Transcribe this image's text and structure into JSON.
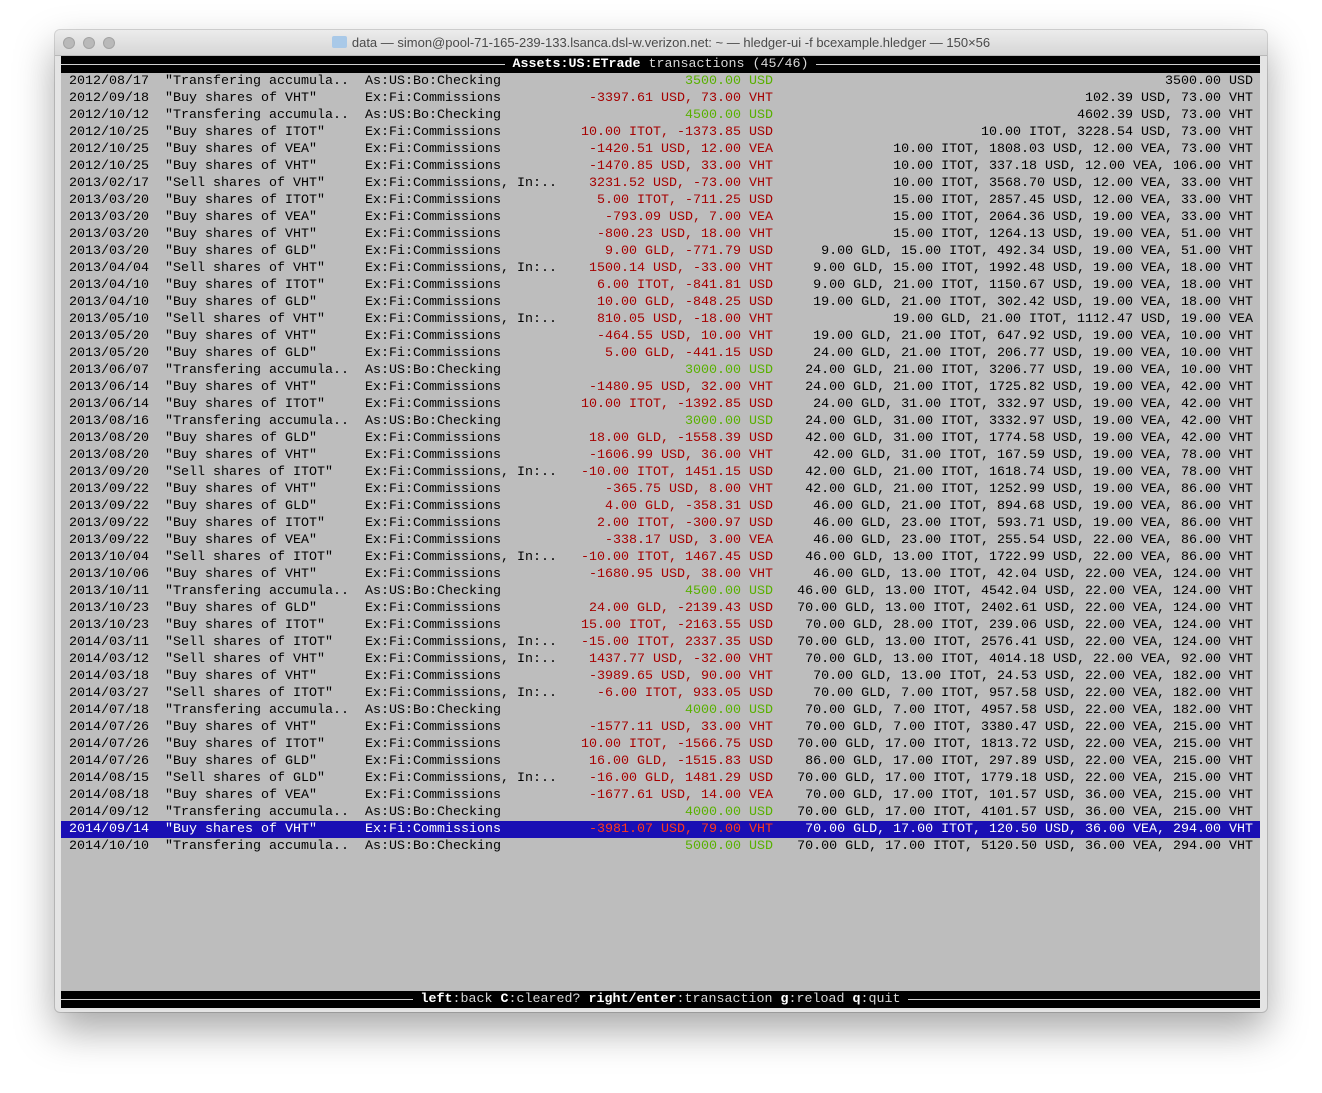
{
  "window": {
    "title": "data — simon@pool-71-165-239-133.lsanca.dsl-w.verizon.net: ~ — hledger-ui -f bcexample.hledger — 150×56",
    "title_icon": "folder-icon"
  },
  "header": {
    "account": "Assets:US:ETrade",
    "label": "transactions (45/46)"
  },
  "colors": {
    "negative": "#a50000",
    "positive": "#58b000",
    "selected_bg": "#1a0fb4",
    "background": "#bdbdbd"
  },
  "selected_index": 44,
  "rows": [
    {
      "date": "2012/08/17",
      "desc": "\"Transfering accumula..",
      "account": "As:US:Bo:Checking",
      "amount": "3500.00 USD",
      "positive": true,
      "balance": "3500.00 USD"
    },
    {
      "date": "2012/09/18",
      "desc": "\"Buy shares of VHT\"",
      "account": "Ex:Fi:Commissions",
      "amount": "-3397.61 USD, 73.00 VHT",
      "positive": false,
      "balance": "102.39 USD, 73.00 VHT"
    },
    {
      "date": "2012/10/12",
      "desc": "\"Transfering accumula..",
      "account": "As:US:Bo:Checking",
      "amount": "4500.00 USD",
      "positive": true,
      "balance": "4602.39 USD, 73.00 VHT"
    },
    {
      "date": "2012/10/25",
      "desc": "\"Buy shares of ITOT\"",
      "account": "Ex:Fi:Commissions",
      "amount": "10.00 ITOT, -1373.85 USD",
      "positive": false,
      "balance": "10.00 ITOT, 3228.54 USD, 73.00 VHT"
    },
    {
      "date": "2012/10/25",
      "desc": "\"Buy shares of VEA\"",
      "account": "Ex:Fi:Commissions",
      "amount": "-1420.51 USD, 12.00 VEA",
      "positive": false,
      "balance": "10.00 ITOT, 1808.03 USD, 12.00 VEA, 73.00 VHT"
    },
    {
      "date": "2012/10/25",
      "desc": "\"Buy shares of VHT\"",
      "account": "Ex:Fi:Commissions",
      "amount": "-1470.85 USD, 33.00 VHT",
      "positive": false,
      "balance": "10.00 ITOT, 337.18 USD, 12.00 VEA, 106.00 VHT"
    },
    {
      "date": "2013/02/17",
      "desc": "\"Sell shares of VHT\"",
      "account": "Ex:Fi:Commissions, In:..",
      "amount": "3231.52 USD, -73.00 VHT",
      "positive": false,
      "balance": "10.00 ITOT, 3568.70 USD, 12.00 VEA, 33.00 VHT"
    },
    {
      "date": "2013/03/20",
      "desc": "\"Buy shares of ITOT\"",
      "account": "Ex:Fi:Commissions",
      "amount": "5.00 ITOT, -711.25 USD",
      "positive": false,
      "balance": "15.00 ITOT, 2857.45 USD, 12.00 VEA, 33.00 VHT"
    },
    {
      "date": "2013/03/20",
      "desc": "\"Buy shares of VEA\"",
      "account": "Ex:Fi:Commissions",
      "amount": "-793.09 USD, 7.00 VEA",
      "positive": false,
      "balance": "15.00 ITOT, 2064.36 USD, 19.00 VEA, 33.00 VHT"
    },
    {
      "date": "2013/03/20",
      "desc": "\"Buy shares of VHT\"",
      "account": "Ex:Fi:Commissions",
      "amount": "-800.23 USD, 18.00 VHT",
      "positive": false,
      "balance": "15.00 ITOT, 1264.13 USD, 19.00 VEA, 51.00 VHT"
    },
    {
      "date": "2013/03/20",
      "desc": "\"Buy shares of GLD\"",
      "account": "Ex:Fi:Commissions",
      "amount": "9.00 GLD, -771.79 USD",
      "positive": false,
      "balance": "9.00 GLD, 15.00 ITOT, 492.34 USD, 19.00 VEA, 51.00 VHT"
    },
    {
      "date": "2013/04/04",
      "desc": "\"Sell shares of VHT\"",
      "account": "Ex:Fi:Commissions, In:..",
      "amount": "1500.14 USD, -33.00 VHT",
      "positive": false,
      "balance": "9.00 GLD, 15.00 ITOT, 1992.48 USD, 19.00 VEA, 18.00 VHT"
    },
    {
      "date": "2013/04/10",
      "desc": "\"Buy shares of ITOT\"",
      "account": "Ex:Fi:Commissions",
      "amount": "6.00 ITOT, -841.81 USD",
      "positive": false,
      "balance": "9.00 GLD, 21.00 ITOT, 1150.67 USD, 19.00 VEA, 18.00 VHT"
    },
    {
      "date": "2013/04/10",
      "desc": "\"Buy shares of GLD\"",
      "account": "Ex:Fi:Commissions",
      "amount": "10.00 GLD, -848.25 USD",
      "positive": false,
      "balance": "19.00 GLD, 21.00 ITOT, 302.42 USD, 19.00 VEA, 18.00 VHT"
    },
    {
      "date": "2013/05/10",
      "desc": "\"Sell shares of VHT\"",
      "account": "Ex:Fi:Commissions, In:..",
      "amount": "810.05 USD, -18.00 VHT",
      "positive": false,
      "balance": "19.00 GLD, 21.00 ITOT, 1112.47 USD, 19.00 VEA"
    },
    {
      "date": "2013/05/20",
      "desc": "\"Buy shares of VHT\"",
      "account": "Ex:Fi:Commissions",
      "amount": "-464.55 USD, 10.00 VHT",
      "positive": false,
      "balance": "19.00 GLD, 21.00 ITOT, 647.92 USD, 19.00 VEA, 10.00 VHT"
    },
    {
      "date": "2013/05/20",
      "desc": "\"Buy shares of GLD\"",
      "account": "Ex:Fi:Commissions",
      "amount": "5.00 GLD, -441.15 USD",
      "positive": false,
      "balance": "24.00 GLD, 21.00 ITOT, 206.77 USD, 19.00 VEA, 10.00 VHT"
    },
    {
      "date": "2013/06/07",
      "desc": "\"Transfering accumula..",
      "account": "As:US:Bo:Checking",
      "amount": "3000.00 USD",
      "positive": true,
      "balance": "24.00 GLD, 21.00 ITOT, 3206.77 USD, 19.00 VEA, 10.00 VHT"
    },
    {
      "date": "2013/06/14",
      "desc": "\"Buy shares of VHT\"",
      "account": "Ex:Fi:Commissions",
      "amount": "-1480.95 USD, 32.00 VHT",
      "positive": false,
      "balance": "24.00 GLD, 21.00 ITOT, 1725.82 USD, 19.00 VEA, 42.00 VHT"
    },
    {
      "date": "2013/06/14",
      "desc": "\"Buy shares of ITOT\"",
      "account": "Ex:Fi:Commissions",
      "amount": "10.00 ITOT, -1392.85 USD",
      "positive": false,
      "balance": "24.00 GLD, 31.00 ITOT, 332.97 USD, 19.00 VEA, 42.00 VHT"
    },
    {
      "date": "2013/08/16",
      "desc": "\"Transfering accumula..",
      "account": "As:US:Bo:Checking",
      "amount": "3000.00 USD",
      "positive": true,
      "balance": "24.00 GLD, 31.00 ITOT, 3332.97 USD, 19.00 VEA, 42.00 VHT"
    },
    {
      "date": "2013/08/20",
      "desc": "\"Buy shares of GLD\"",
      "account": "Ex:Fi:Commissions",
      "amount": "18.00 GLD, -1558.39 USD",
      "positive": false,
      "balance": "42.00 GLD, 31.00 ITOT, 1774.58 USD, 19.00 VEA, 42.00 VHT"
    },
    {
      "date": "2013/08/20",
      "desc": "\"Buy shares of VHT\"",
      "account": "Ex:Fi:Commissions",
      "amount": "-1606.99 USD, 36.00 VHT",
      "positive": false,
      "balance": "42.00 GLD, 31.00 ITOT, 167.59 USD, 19.00 VEA, 78.00 VHT"
    },
    {
      "date": "2013/09/20",
      "desc": "\"Sell shares of ITOT\"",
      "account": "Ex:Fi:Commissions, In:..",
      "amount": "-10.00 ITOT, 1451.15 USD",
      "positive": false,
      "balance": "42.00 GLD, 21.00 ITOT, 1618.74 USD, 19.00 VEA, 78.00 VHT"
    },
    {
      "date": "2013/09/22",
      "desc": "\"Buy shares of VHT\"",
      "account": "Ex:Fi:Commissions",
      "amount": "-365.75 USD, 8.00 VHT",
      "positive": false,
      "balance": "42.00 GLD, 21.00 ITOT, 1252.99 USD, 19.00 VEA, 86.00 VHT"
    },
    {
      "date": "2013/09/22",
      "desc": "\"Buy shares of GLD\"",
      "account": "Ex:Fi:Commissions",
      "amount": "4.00 GLD, -358.31 USD",
      "positive": false,
      "balance": "46.00 GLD, 21.00 ITOT, 894.68 USD, 19.00 VEA, 86.00 VHT"
    },
    {
      "date": "2013/09/22",
      "desc": "\"Buy shares of ITOT\"",
      "account": "Ex:Fi:Commissions",
      "amount": "2.00 ITOT, -300.97 USD",
      "positive": false,
      "balance": "46.00 GLD, 23.00 ITOT, 593.71 USD, 19.00 VEA, 86.00 VHT"
    },
    {
      "date": "2013/09/22",
      "desc": "\"Buy shares of VEA\"",
      "account": "Ex:Fi:Commissions",
      "amount": "-338.17 USD, 3.00 VEA",
      "positive": false,
      "balance": "46.00 GLD, 23.00 ITOT, 255.54 USD, 22.00 VEA, 86.00 VHT"
    },
    {
      "date": "2013/10/04",
      "desc": "\"Sell shares of ITOT\"",
      "account": "Ex:Fi:Commissions, In:..",
      "amount": "-10.00 ITOT, 1467.45 USD",
      "positive": false,
      "balance": "46.00 GLD, 13.00 ITOT, 1722.99 USD, 22.00 VEA, 86.00 VHT"
    },
    {
      "date": "2013/10/06",
      "desc": "\"Buy shares of VHT\"",
      "account": "Ex:Fi:Commissions",
      "amount": "-1680.95 USD, 38.00 VHT",
      "positive": false,
      "balance": "46.00 GLD, 13.00 ITOT, 42.04 USD, 22.00 VEA, 124.00 VHT"
    },
    {
      "date": "2013/10/11",
      "desc": "\"Transfering accumula..",
      "account": "As:US:Bo:Checking",
      "amount": "4500.00 USD",
      "positive": true,
      "balance": "46.00 GLD, 13.00 ITOT, 4542.04 USD, 22.00 VEA, 124.00 VHT"
    },
    {
      "date": "2013/10/23",
      "desc": "\"Buy shares of GLD\"",
      "account": "Ex:Fi:Commissions",
      "amount": "24.00 GLD, -2139.43 USD",
      "positive": false,
      "balance": "70.00 GLD, 13.00 ITOT, 2402.61 USD, 22.00 VEA, 124.00 VHT"
    },
    {
      "date": "2013/10/23",
      "desc": "\"Buy shares of ITOT\"",
      "account": "Ex:Fi:Commissions",
      "amount": "15.00 ITOT, -2163.55 USD",
      "positive": false,
      "balance": "70.00 GLD, 28.00 ITOT, 239.06 USD, 22.00 VEA, 124.00 VHT"
    },
    {
      "date": "2014/03/11",
      "desc": "\"Sell shares of ITOT\"",
      "account": "Ex:Fi:Commissions, In:..",
      "amount": "-15.00 ITOT, 2337.35 USD",
      "positive": false,
      "balance": "70.00 GLD, 13.00 ITOT, 2576.41 USD, 22.00 VEA, 124.00 VHT"
    },
    {
      "date": "2014/03/12",
      "desc": "\"Sell shares of VHT\"",
      "account": "Ex:Fi:Commissions, In:..",
      "amount": "1437.77 USD, -32.00 VHT",
      "positive": false,
      "balance": "70.00 GLD, 13.00 ITOT, 4014.18 USD, 22.00 VEA, 92.00 VHT"
    },
    {
      "date": "2014/03/18",
      "desc": "\"Buy shares of VHT\"",
      "account": "Ex:Fi:Commissions",
      "amount": "-3989.65 USD, 90.00 VHT",
      "positive": false,
      "balance": "70.00 GLD, 13.00 ITOT, 24.53 USD, 22.00 VEA, 182.00 VHT"
    },
    {
      "date": "2014/03/27",
      "desc": "\"Sell shares of ITOT\"",
      "account": "Ex:Fi:Commissions, In:..",
      "amount": "-6.00 ITOT, 933.05 USD",
      "positive": false,
      "balance": "70.00 GLD, 7.00 ITOT, 957.58 USD, 22.00 VEA, 182.00 VHT"
    },
    {
      "date": "2014/07/18",
      "desc": "\"Transfering accumula..",
      "account": "As:US:Bo:Checking",
      "amount": "4000.00 USD",
      "positive": true,
      "balance": "70.00 GLD, 7.00 ITOT, 4957.58 USD, 22.00 VEA, 182.00 VHT"
    },
    {
      "date": "2014/07/26",
      "desc": "\"Buy shares of VHT\"",
      "account": "Ex:Fi:Commissions",
      "amount": "-1577.11 USD, 33.00 VHT",
      "positive": false,
      "balance": "70.00 GLD, 7.00 ITOT, 3380.47 USD, 22.00 VEA, 215.00 VHT"
    },
    {
      "date": "2014/07/26",
      "desc": "\"Buy shares of ITOT\"",
      "account": "Ex:Fi:Commissions",
      "amount": "10.00 ITOT, -1566.75 USD",
      "positive": false,
      "balance": "70.00 GLD, 17.00 ITOT, 1813.72 USD, 22.00 VEA, 215.00 VHT"
    },
    {
      "date": "2014/07/26",
      "desc": "\"Buy shares of GLD\"",
      "account": "Ex:Fi:Commissions",
      "amount": "16.00 GLD, -1515.83 USD",
      "positive": false,
      "balance": "86.00 GLD, 17.00 ITOT, 297.89 USD, 22.00 VEA, 215.00 VHT"
    },
    {
      "date": "2014/08/15",
      "desc": "\"Sell shares of GLD\"",
      "account": "Ex:Fi:Commissions, In:..",
      "amount": "-16.00 GLD, 1481.29 USD",
      "positive": false,
      "balance": "70.00 GLD, 17.00 ITOT, 1779.18 USD, 22.00 VEA, 215.00 VHT"
    },
    {
      "date": "2014/08/18",
      "desc": "\"Buy shares of VEA\"",
      "account": "Ex:Fi:Commissions",
      "amount": "-1677.61 USD, 14.00 VEA",
      "positive": false,
      "balance": "70.00 GLD, 17.00 ITOT, 101.57 USD, 36.00 VEA, 215.00 VHT"
    },
    {
      "date": "2014/09/12",
      "desc": "\"Transfering accumula..",
      "account": "As:US:Bo:Checking",
      "amount": "4000.00 USD",
      "positive": true,
      "balance": "70.00 GLD, 17.00 ITOT, 4101.57 USD, 36.00 VEA, 215.00 VHT"
    },
    {
      "date": "2014/09/14",
      "desc": "\"Buy shares of VHT\"",
      "account": "Ex:Fi:Commissions",
      "amount": "-3981.07 USD, 79.00 VHT",
      "positive": false,
      "balance": "70.00 GLD, 17.00 ITOT, 120.50 USD, 36.00 VEA, 294.00 VHT"
    },
    {
      "date": "2014/10/10",
      "desc": "\"Transfering accumula..",
      "account": "As:US:Bo:Checking",
      "amount": "5000.00 USD",
      "positive": true,
      "balance": "70.00 GLD, 17.00 ITOT, 5120.50 USD, 36.00 VEA, 294.00 VHT"
    }
  ],
  "footer": {
    "keys": [
      {
        "key": "left",
        "action": "back"
      },
      {
        "key": "C",
        "action": "cleared?"
      },
      {
        "key": "right/enter",
        "action": "transaction"
      },
      {
        "key": "g",
        "action": "reload"
      },
      {
        "key": "q",
        "action": "quit"
      }
    ]
  }
}
